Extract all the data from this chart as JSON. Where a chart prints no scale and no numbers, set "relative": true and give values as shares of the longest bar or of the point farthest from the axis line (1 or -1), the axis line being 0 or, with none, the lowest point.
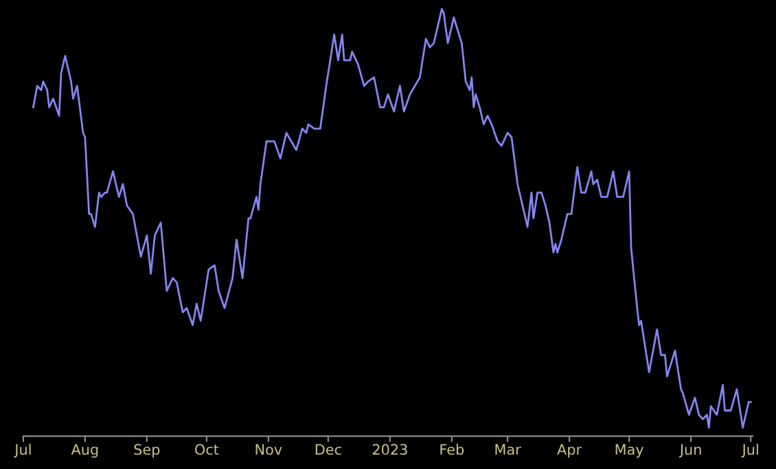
{
  "chart_data": {
    "type": "line",
    "relative": true,
    "grid": false,
    "marker": "none",
    "line_style": "solid",
    "x": [
      "2022-07-06",
      "2022-07-08",
      "2022-07-10",
      "2022-07-11",
      "2022-07-13",
      "2022-07-14",
      "2022-07-16",
      "2022-07-19",
      "2022-07-20",
      "2022-07-22",
      "2022-07-25",
      "2022-07-26",
      "2022-07-28",
      "2022-07-31",
      "2022-08-01",
      "2022-08-03",
      "2022-08-04",
      "2022-08-06",
      "2022-08-08",
      "2022-08-09",
      "2022-08-11",
      "2022-08-12",
      "2022-08-15",
      "2022-08-18",
      "2022-08-20",
      "2022-08-22",
      "2022-08-25",
      "2022-08-29",
      "2022-09-01",
      "2022-09-03",
      "2022-09-05",
      "2022-09-08",
      "2022-09-11",
      "2022-09-14",
      "2022-09-16",
      "2022-09-19",
      "2022-09-21",
      "2022-09-24",
      "2022-09-26",
      "2022-09-28",
      "2022-10-02",
      "2022-10-05",
      "2022-10-07",
      "2022-10-10",
      "2022-10-14",
      "2022-10-16",
      "2022-10-19",
      "2022-10-22",
      "2022-10-23",
      "2022-10-26",
      "2022-10-27",
      "2022-10-28",
      "2022-10-31",
      "2022-11-03",
      "2022-11-04",
      "2022-11-07",
      "2022-11-10",
      "2022-11-15",
      "2022-11-18",
      "2022-11-20",
      "2022-11-21",
      "2022-11-24",
      "2022-11-27",
      "2022-11-30",
      "2022-12-04",
      "2022-12-06",
      "2022-12-08",
      "2022-12-09",
      "2022-12-12",
      "2022-12-13",
      "2022-12-16",
      "2022-12-19",
      "2022-12-21",
      "2022-12-24",
      "2022-12-27",
      "2022-12-29",
      "2022-12-31",
      "2023-01-03",
      "2023-01-06",
      "2023-01-08",
      "2023-01-11",
      "2023-01-16",
      "2023-01-19",
      "2023-01-21",
      "2023-01-23",
      "2023-01-27",
      "2023-01-28",
      "2023-01-30",
      "2023-02-02",
      "2023-02-06",
      "2023-02-08",
      "2023-02-10",
      "2023-02-11",
      "2023-02-12",
      "2023-02-13",
      "2023-02-15",
      "2023-02-17",
      "2023-02-19",
      "2023-02-21",
      "2023-02-24",
      "2023-02-26",
      "2023-03-01",
      "2023-03-03",
      "2023-03-06",
      "2023-03-11",
      "2023-03-13",
      "2023-03-14",
      "2023-03-16",
      "2023-03-18",
      "2023-03-20",
      "2023-03-22",
      "2023-03-24",
      "2023-03-25",
      "2023-03-26",
      "2023-03-28",
      "2023-03-31",
      "2023-04-02",
      "2023-04-05",
      "2023-04-07",
      "2023-04-09",
      "2023-04-12",
      "2023-04-13",
      "2023-04-15",
      "2023-04-17",
      "2023-04-20",
      "2023-04-23",
      "2023-04-25",
      "2023-04-28",
      "2023-05-01",
      "2023-05-02",
      "2023-05-05",
      "2023-05-06",
      "2023-05-07",
      "2023-05-11",
      "2023-05-15",
      "2023-05-17",
      "2023-05-19",
      "2023-05-20",
      "2023-05-24",
      "2023-05-27",
      "2023-05-28",
      "2023-05-31",
      "2023-06-03",
      "2023-06-05",
      "2023-06-07",
      "2023-06-09",
      "2023-06-10",
      "2023-06-11",
      "2023-06-14",
      "2023-06-17",
      "2023-06-18",
      "2023-06-21",
      "2023-06-24",
      "2023-06-27",
      "2023-06-30",
      "2023-07-01"
    ],
    "series": [
      {
        "color": "#8585f0",
        "values": [
          0.77,
          0.82,
          0.81,
          0.83,
          0.81,
          0.77,
          0.79,
          0.75,
          0.85,
          0.89,
          0.83,
          0.79,
          0.82,
          0.71,
          0.7,
          0.52,
          0.52,
          0.49,
          0.57,
          0.56,
          0.57,
          0.57,
          0.62,
          0.56,
          0.59,
          0.54,
          0.52,
          0.42,
          0.47,
          0.38,
          0.47,
          0.5,
          0.34,
          0.37,
          0.36,
          0.29,
          0.3,
          0.26,
          0.31,
          0.27,
          0.39,
          0.4,
          0.34,
          0.3,
          0.37,
          0.46,
          0.37,
          0.51,
          0.51,
          0.56,
          0.53,
          0.59,
          0.69,
          0.69,
          0.69,
          0.65,
          0.71,
          0.67,
          0.72,
          0.71,
          0.73,
          0.72,
          0.72,
          0.82,
          0.94,
          0.88,
          0.94,
          0.88,
          0.88,
          0.9,
          0.87,
          0.82,
          0.83,
          0.84,
          0.77,
          0.77,
          0.8,
          0.76,
          0.82,
          0.76,
          0.8,
          0.84,
          0.93,
          0.91,
          0.92,
          1.0,
          0.99,
          0.92,
          0.98,
          0.92,
          0.83,
          0.81,
          0.84,
          0.77,
          0.8,
          0.77,
          0.73,
          0.75,
          0.73,
          0.69,
          0.68,
          0.71,
          0.7,
          0.59,
          0.49,
          0.57,
          0.51,
          0.57,
          0.57,
          0.54,
          0.5,
          0.43,
          0.45,
          0.43,
          0.46,
          0.52,
          0.52,
          0.63,
          0.57,
          0.57,
          0.62,
          0.59,
          0.6,
          0.56,
          0.56,
          0.62,
          0.56,
          0.56,
          0.62,
          0.44,
          0.3,
          0.26,
          0.27,
          0.15,
          0.25,
          0.19,
          0.19,
          0.14,
          0.2,
          0.11,
          0.1,
          0.05,
          0.09,
          0.05,
          0.04,
          0.05,
          0.02,
          0.07,
          0.05,
          0.12,
          0.06,
          0.06,
          0.11,
          0.02,
          0.08,
          0.08
        ]
      }
    ],
    "xlim": [
      "2022-07-01",
      "2023-07-02"
    ],
    "xticks": [
      {
        "value": "2022-07-01",
        "label": "Jul"
      },
      {
        "value": "2022-08-01",
        "label": "Aug"
      },
      {
        "value": "2022-09-01",
        "label": "Sep"
      },
      {
        "value": "2022-10-01",
        "label": "Oct"
      },
      {
        "value": "2022-11-01",
        "label": "Nov"
      },
      {
        "value": "2022-12-01",
        "label": "Dec"
      },
      {
        "value": "2023-01-01",
        "label": "2023"
      },
      {
        "value": "2023-02-01",
        "label": "Feb"
      },
      {
        "value": "2023-03-01",
        "label": "Mar"
      },
      {
        "value": "2023-04-01",
        "label": "Apr"
      },
      {
        "value": "2023-05-01",
        "label": "May"
      },
      {
        "value": "2023-06-01",
        "label": "Jun"
      },
      {
        "value": "2023-07-01",
        "label": "Jul"
      }
    ]
  }
}
